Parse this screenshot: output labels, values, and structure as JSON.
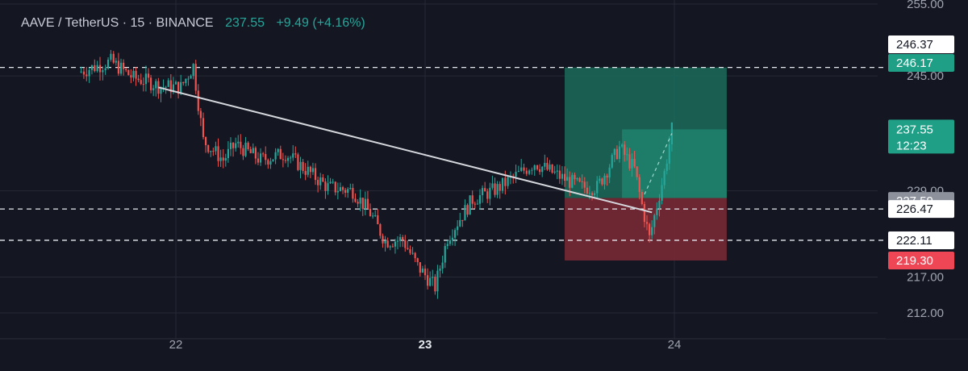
{
  "header": {
    "symbol": "AAVE / TetherUS · 15 · BINANCE",
    "price": "237.55",
    "change": "+9.49 (+4.16%)"
  },
  "colors": {
    "background": "#141722",
    "up": "#26a69a",
    "down": "#ef5350",
    "target_zone": "#1b6b5b",
    "stop_zone": "#7b2a35",
    "trendline": "#d5d7dd",
    "grid": "#262a36"
  },
  "chart_data": {
    "type": "candlestick",
    "ylim": [
      210.5,
      256
    ],
    "x_ticks": [
      {
        "label": "22",
        "x": 22.0,
        "bold": false
      },
      {
        "label": "23",
        "x": 23.0,
        "bold": true
      },
      {
        "label": "24",
        "x": 24.0,
        "bold": false
      }
    ],
    "y_ticks": [
      {
        "value": 255.0,
        "label": "255.00"
      },
      {
        "value": 245.0,
        "label": "245.00"
      },
      {
        "value": 229.0,
        "label": "229.00"
      },
      {
        "value": 217.0,
        "label": "217.00"
      },
      {
        "value": 212.0,
        "label": "212.00"
      }
    ],
    "price_tags": [
      {
        "value": 246.37,
        "label": "246.37",
        "style": "white"
      },
      {
        "value": 246.17,
        "label": "246.17",
        "style": "green"
      },
      {
        "value": 237.55,
        "label": "237.55",
        "sub": "12:23",
        "style": "green-big"
      },
      {
        "value": 227.59,
        "label": "227.59",
        "style": "gray"
      },
      {
        "value": 226.47,
        "label": "226.47",
        "style": "white"
      },
      {
        "value": 222.11,
        "label": "222.11",
        "style": "white"
      },
      {
        "value": 219.3,
        "label": "219.30",
        "style": "red"
      }
    ],
    "dashed_levels": [
      246.17,
      226.47,
      222.11
    ],
    "position": {
      "x_start": 23.56,
      "x_end": 24.21,
      "target": 246.17,
      "entry": 228.0,
      "stop": 219.3,
      "inner_x_start": 23.79,
      "inner_top": 237.55
    },
    "trendline": {
      "x1": 21.93,
      "y1": 243.4,
      "x2": 23.91,
      "y2": 226.0
    },
    "dashed_trail": {
      "x1": 23.88,
      "y1": 228.5,
      "x2": 23.99,
      "y2": 237.0
    },
    "close_series": [
      [
        21.62,
        245.5
      ],
      [
        21.75,
        247.0
      ],
      [
        21.84,
        244.7
      ],
      [
        21.9,
        244.2
      ],
      [
        21.94,
        243.6
      ],
      [
        22.03,
        243.4
      ],
      [
        22.08,
        246.4
      ],
      [
        22.12,
        236.0
      ],
      [
        22.2,
        233.3
      ],
      [
        22.25,
        235.5
      ],
      [
        22.35,
        233.3
      ],
      [
        22.45,
        234.2
      ],
      [
        22.5,
        232.8
      ],
      [
        22.62,
        229.5
      ],
      [
        22.72,
        229.0
      ],
      [
        22.79,
        225.9
      ],
      [
        22.85,
        222.0
      ],
      [
        22.92,
        222.2
      ],
      [
        22.98,
        218.5
      ],
      [
        23.05,
        215.6
      ],
      [
        23.1,
        222.5
      ],
      [
        23.2,
        227.8
      ],
      [
        23.3,
        229.3
      ],
      [
        23.45,
        232.9
      ],
      [
        23.56,
        230.8
      ],
      [
        23.64,
        229.5
      ],
      [
        23.7,
        229.5
      ],
      [
        23.79,
        235.0
      ],
      [
        23.85,
        232.0
      ],
      [
        23.88,
        227.0
      ],
      [
        23.91,
        222.4
      ],
      [
        23.94,
        227.0
      ],
      [
        23.97,
        231.5
      ],
      [
        24.0,
        237.55
      ]
    ],
    "candle_period_days": 0.0104
  }
}
